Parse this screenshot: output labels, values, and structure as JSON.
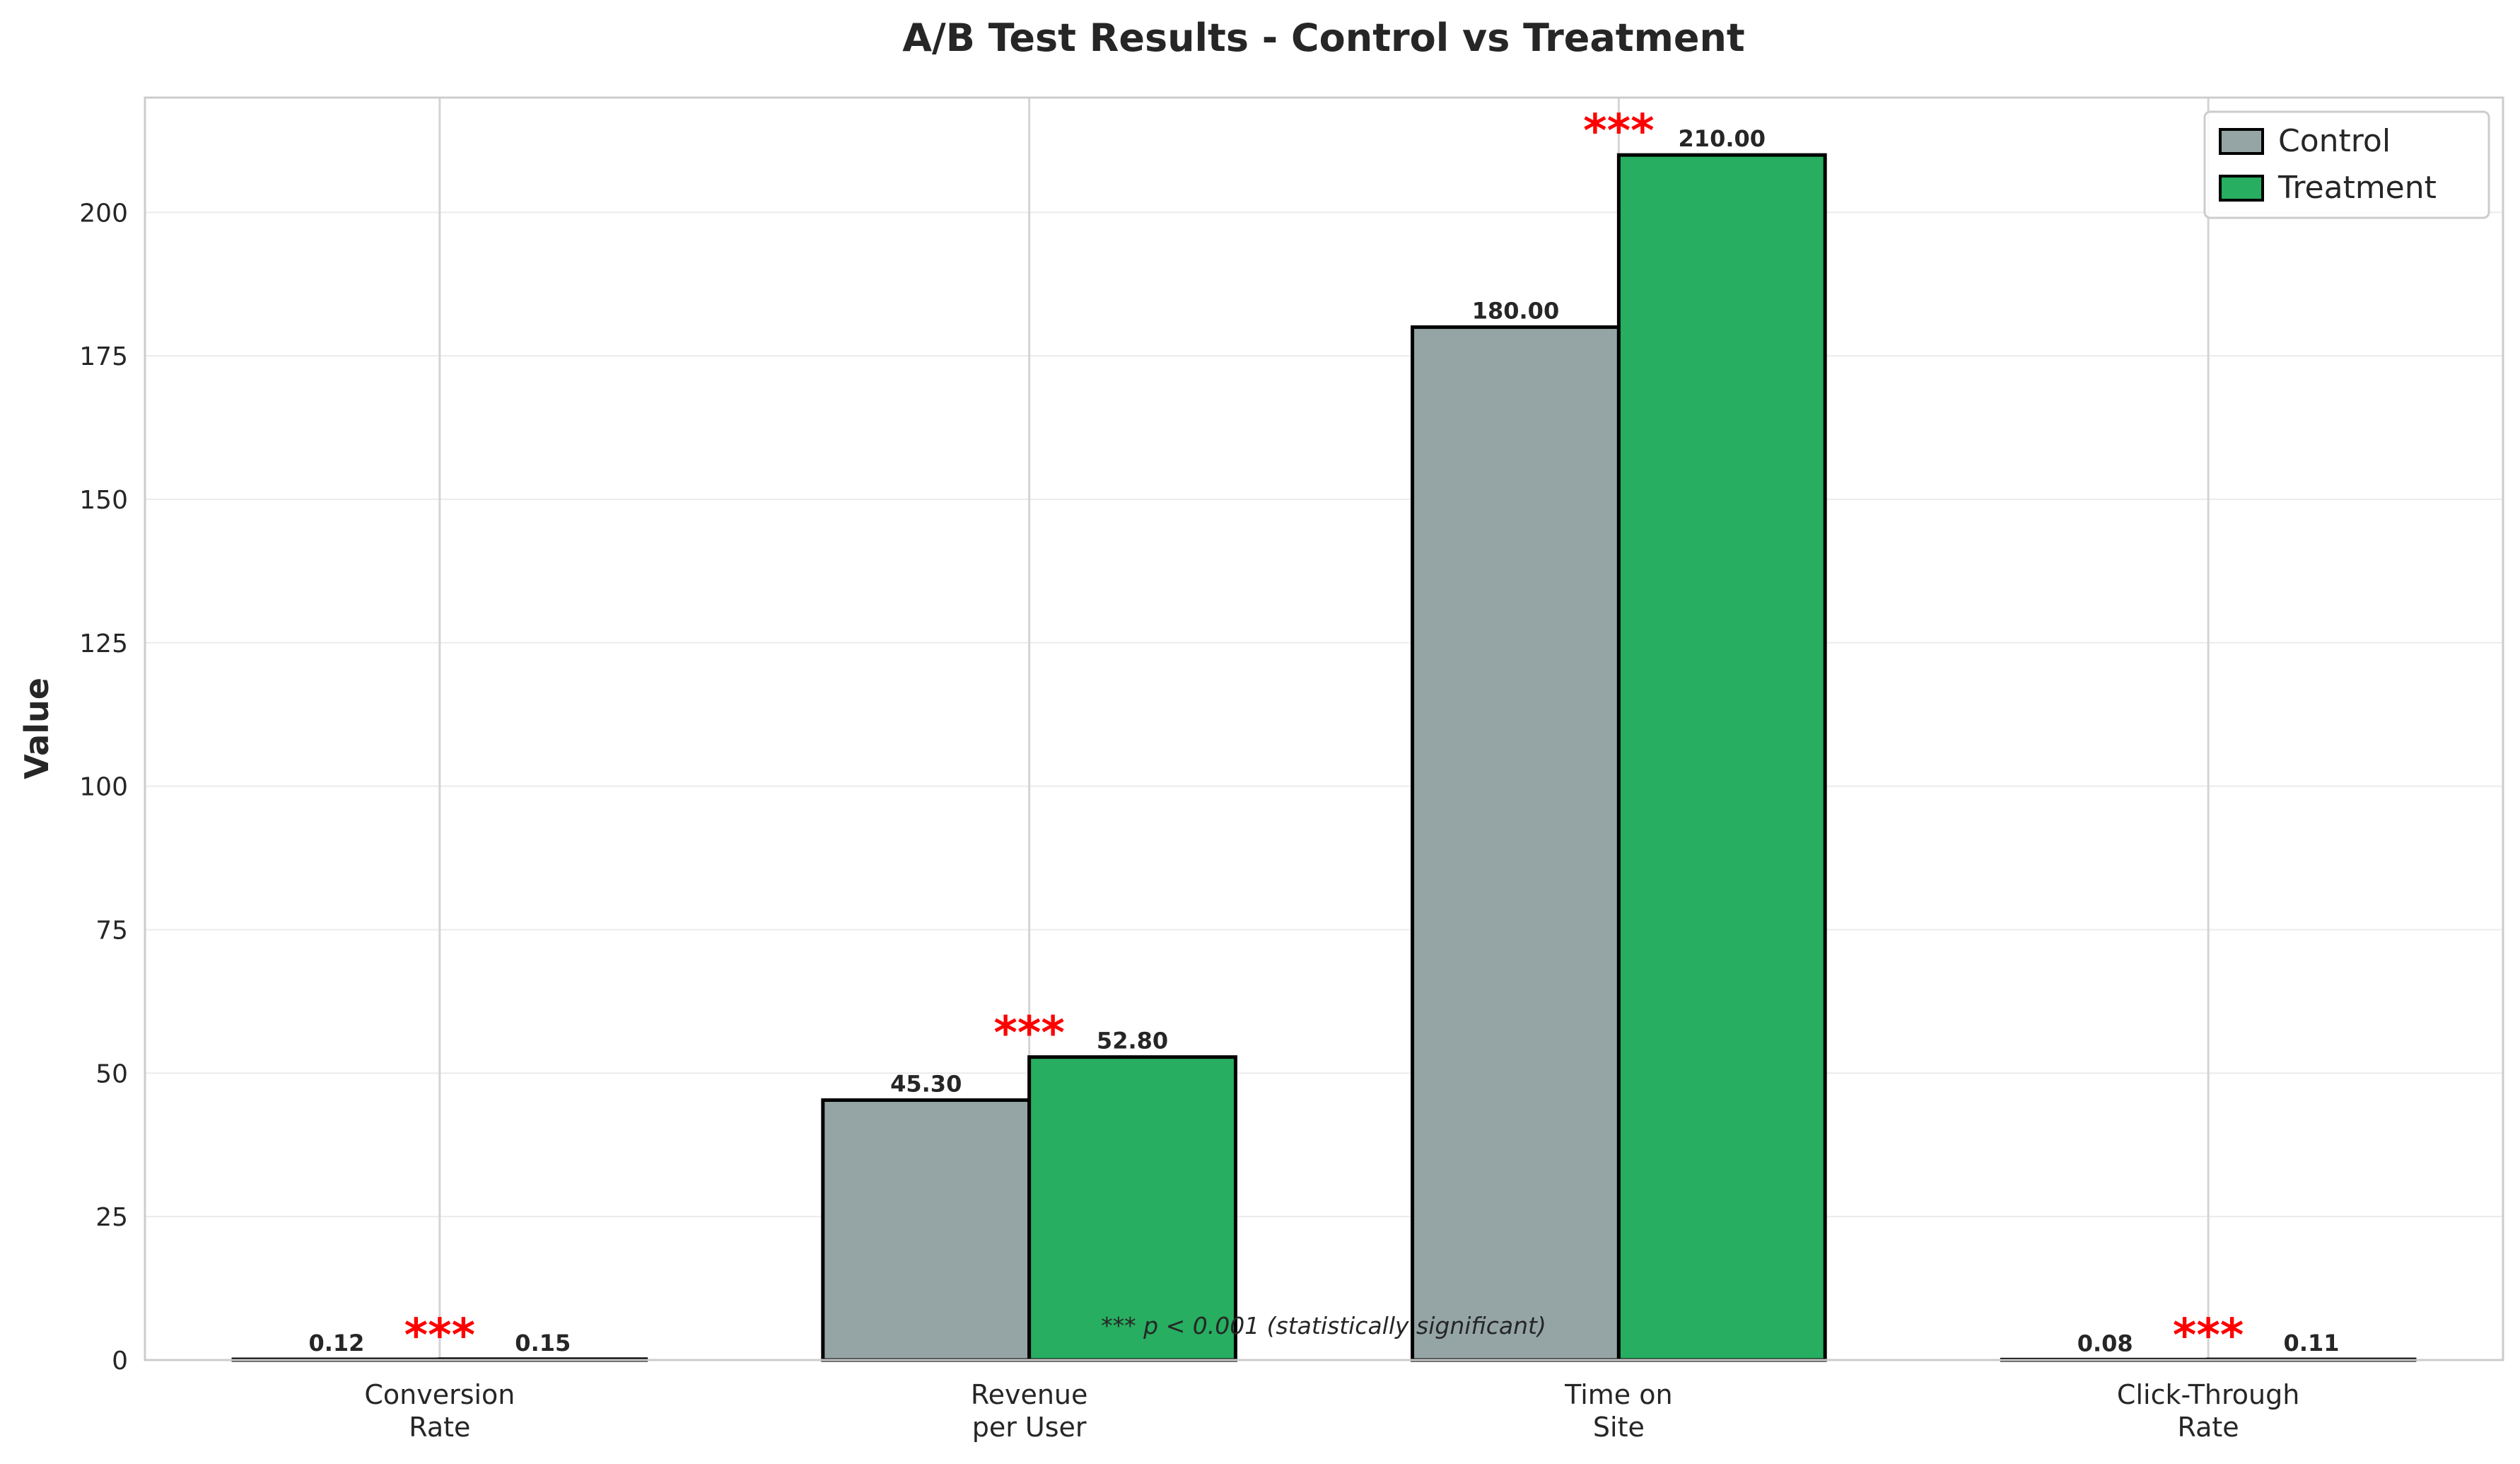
{
  "chart_data": {
    "type": "bar",
    "title": "A/B Test Results - Control vs Treatment",
    "xlabel": "",
    "ylabel": "Value",
    "ylim": [
      0,
      220
    ],
    "yticks": [
      0,
      25,
      50,
      75,
      100,
      125,
      150,
      175,
      200
    ],
    "grid": true,
    "legend_position": "top-right",
    "categories": [
      [
        "Conversion",
        "Rate"
      ],
      [
        "Revenue",
        "per User"
      ],
      [
        "Time on",
        "Site"
      ],
      [
        "Click-Through",
        "Rate"
      ]
    ],
    "series": [
      {
        "name": "Control",
        "color": "#95a5a6",
        "values": [
          0.12,
          45.3,
          180.0,
          0.08
        ],
        "labels": [
          "0.12",
          "45.30",
          "180.00",
          "0.08"
        ]
      },
      {
        "name": "Treatment",
        "color": "#27ae60",
        "values": [
          0.15,
          52.8,
          210.0,
          0.11
        ],
        "labels": [
          "0.15",
          "52.80",
          "210.00",
          "0.11"
        ]
      }
    ],
    "significance": [
      "***",
      "***",
      "***",
      "***"
    ],
    "annotation": "*** p < 0.001 (statistically significant)",
    "significance_color": "#ff0000"
  }
}
